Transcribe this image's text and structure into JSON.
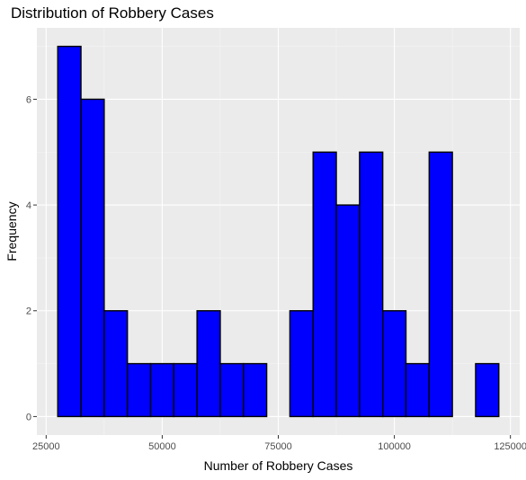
{
  "chart_data": {
    "type": "bar",
    "subtype": "histogram",
    "title": "Distribution of Robbery Cases",
    "xlabel": "Number of Robbery Cases",
    "ylabel": "Frequency",
    "bin_width": 5000,
    "bins": [
      {
        "x0": 27500,
        "x1": 32500,
        "count": 7
      },
      {
        "x0": 32500,
        "x1": 37500,
        "count": 6
      },
      {
        "x0": 37500,
        "x1": 42500,
        "count": 2
      },
      {
        "x0": 42500,
        "x1": 47500,
        "count": 1
      },
      {
        "x0": 47500,
        "x1": 52500,
        "count": 1
      },
      {
        "x0": 52500,
        "x1": 57500,
        "count": 1
      },
      {
        "x0": 57500,
        "x1": 62500,
        "count": 2
      },
      {
        "x0": 62500,
        "x1": 67500,
        "count": 1
      },
      {
        "x0": 67500,
        "x1": 72500,
        "count": 1
      },
      {
        "x0": 72500,
        "x1": 77500,
        "count": 0
      },
      {
        "x0": 77500,
        "x1": 82500,
        "count": 2
      },
      {
        "x0": 82500,
        "x1": 87500,
        "count": 5
      },
      {
        "x0": 87500,
        "x1": 92500,
        "count": 4
      },
      {
        "x0": 92500,
        "x1": 97500,
        "count": 5
      },
      {
        "x0": 97500,
        "x1": 102500,
        "count": 2
      },
      {
        "x0": 102500,
        "x1": 107500,
        "count": 1
      },
      {
        "x0": 107500,
        "x1": 112500,
        "count": 5
      },
      {
        "x0": 112500,
        "x1": 117500,
        "count": 0
      },
      {
        "x0": 117500,
        "x1": 122500,
        "count": 1
      }
    ],
    "xlim": [
      23000,
      127000
    ],
    "ylim": [
      -0.35,
      7.35
    ],
    "x_ticks": [
      25000,
      50000,
      75000,
      100000,
      125000
    ],
    "y_ticks": [
      0,
      2,
      4,
      6
    ],
    "grid": true,
    "legend": "none",
    "colors": {
      "bar_fill": "#0000ff",
      "bar_stroke": "#000000",
      "panel_background": "#ebebeb",
      "grid_major": "#ffffff",
      "grid_minor": "#f5f5f5"
    }
  }
}
